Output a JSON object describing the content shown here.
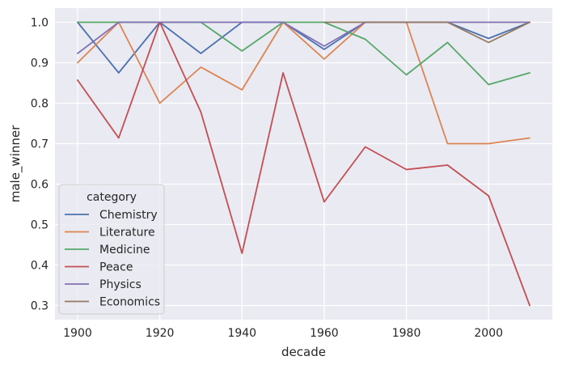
{
  "chart_data": {
    "type": "line",
    "title": "",
    "xlabel": "decade",
    "ylabel": "male_winner",
    "xlim": [
      1894.5,
      2015.5
    ],
    "ylim": [
      0.265,
      1.035
    ],
    "xticks": [
      1900,
      1920,
      1940,
      1960,
      1980,
      2000
    ],
    "yticks": [
      0.3,
      0.4,
      0.5,
      0.6,
      0.7,
      0.8,
      0.9,
      1.0
    ],
    "ytick_labels": [
      "0.3",
      "0.4",
      "0.5",
      "0.6",
      "0.7",
      "0.8",
      "0.9",
      "1.0"
    ],
    "grid": true,
    "background": "#eaeaf2",
    "legend": {
      "title": "category",
      "placement": "lower-left"
    },
    "x": [
      1900,
      1910,
      1920,
      1930,
      1940,
      1950,
      1960,
      1970,
      1980,
      1990,
      2000,
      2010
    ],
    "series": [
      {
        "name": "Chemistry",
        "color": "#4c72b0",
        "values": [
          1.0,
          0.875,
          1.0,
          0.923,
          1.0,
          1.0,
          0.933,
          1.0,
          1.0,
          1.0,
          0.96,
          1.0
        ]
      },
      {
        "name": "Literature",
        "color": "#dd8452",
        "values": [
          0.9,
          1.0,
          0.8,
          0.889,
          0.833,
          1.0,
          0.909,
          1.0,
          1.0,
          0.7,
          0.7,
          0.714
        ]
      },
      {
        "name": "Medicine",
        "color": "#55a868",
        "values": [
          1.0,
          1.0,
          1.0,
          1.0,
          0.929,
          1.0,
          1.0,
          0.958,
          0.87,
          0.95,
          0.846,
          0.875
        ]
      },
      {
        "name": "Peace",
        "color": "#c44e52",
        "values": [
          0.857,
          0.714,
          1.0,
          0.778,
          0.429,
          0.875,
          0.556,
          0.692,
          0.636,
          0.647,
          0.571,
          0.3
        ]
      },
      {
        "name": "Physics",
        "color": "#8172b3",
        "values": [
          0.923,
          1.0,
          1.0,
          1.0,
          1.0,
          1.0,
          0.941,
          1.0,
          1.0,
          1.0,
          1.0,
          1.0
        ]
      },
      {
        "name": "Economics",
        "color": "#937860",
        "values": [
          null,
          null,
          null,
          null,
          null,
          null,
          1.0,
          1.0,
          1.0,
          1.0,
          0.95,
          1.0
        ]
      }
    ]
  }
}
